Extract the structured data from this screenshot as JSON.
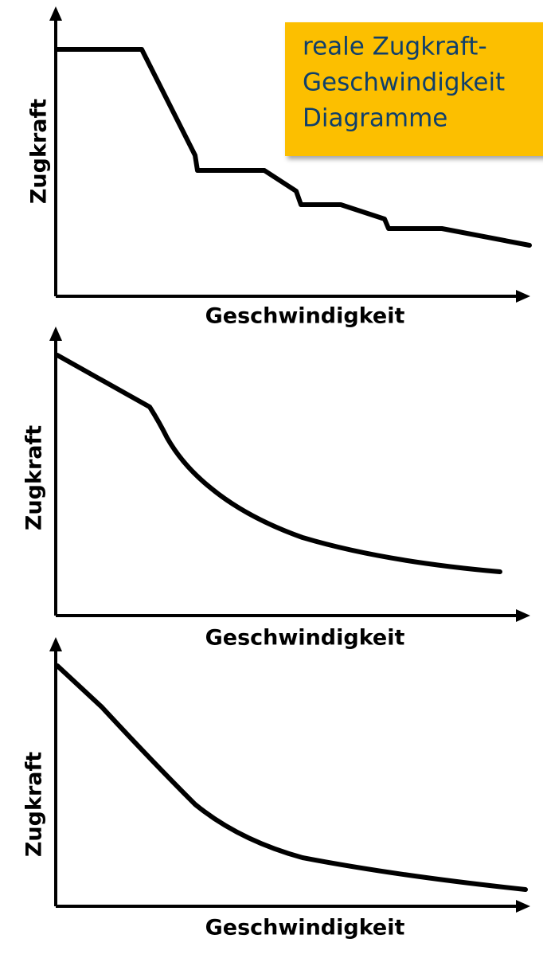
{
  "callout": {
    "lines": [
      "reale Zugkraft-",
      "Geschwindigkeit",
      "Diagramme"
    ]
  },
  "panels": [
    {
      "y_label": "Zugkraft",
      "x_label": "Geschwindigkeit"
    },
    {
      "y_label": "Zugkraft",
      "x_label": "Geschwindigkeit"
    },
    {
      "y_label": "Zugkraft",
      "x_label": "Geschwindigkeit"
    }
  ]
}
